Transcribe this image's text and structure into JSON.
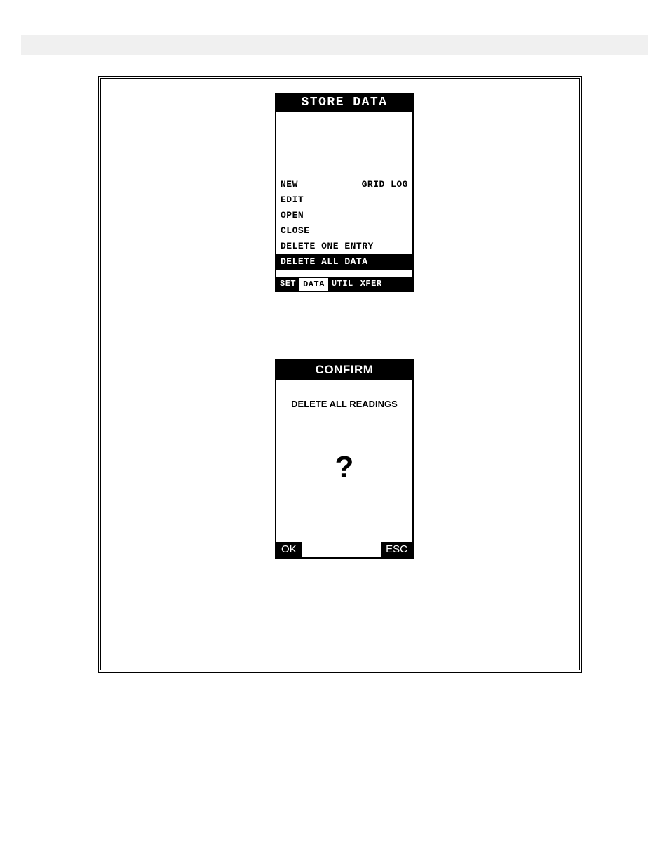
{
  "colors": {
    "header_bar": "#f0f0f0",
    "frame_border": "#000000",
    "screen_bg": "#ffffff",
    "screen_fg": "#000000",
    "inverse_bg": "#000000",
    "inverse_fg": "#ffffff"
  },
  "store_screen": {
    "title": "STORE DATA",
    "menu": [
      {
        "label": "NEW",
        "value": "GRID LOG",
        "selected": false
      },
      {
        "label": "EDIT",
        "value": "",
        "selected": false
      },
      {
        "label": "OPEN",
        "value": "",
        "selected": false
      },
      {
        "label": "CLOSE",
        "value": "",
        "selected": false
      },
      {
        "label": "DELETE ONE ENTRY",
        "value": "",
        "selected": false
      },
      {
        "label": "DELETE ALL DATA",
        "value": "",
        "selected": true
      }
    ],
    "tabs": [
      {
        "label": "SET",
        "active": false
      },
      {
        "label": "DATA",
        "active": true
      },
      {
        "label": "UTIL",
        "active": false
      },
      {
        "label": "XFER",
        "active": false
      }
    ]
  },
  "confirm_screen": {
    "title": "CONFIRM",
    "message": "DELETE ALL READINGS",
    "symbol": "?",
    "ok_label": "OK",
    "esc_label": "ESC"
  }
}
